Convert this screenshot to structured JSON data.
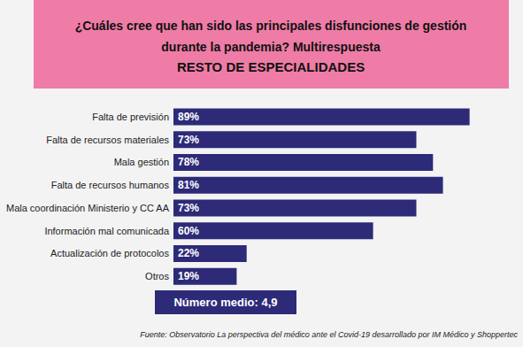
{
  "chart_data": {
    "type": "bar",
    "title": "¿Cuáles cree que han sido las principales disfunciones de gestión\ndurante la pandemia? Multirespuesta",
    "subtitle": "RESTO DE ESPECIALIDADES",
    "categories": [
      "Falta de previsión",
      "Falta de recursos materiales",
      "Mala gestión",
      "Falta de recursos humanos",
      "Mala coordinación Ministerio y CC AA",
      "Información mal comunicada",
      "Actualización de protocolos",
      "Otros"
    ],
    "values": [
      89,
      73,
      78,
      81,
      73,
      60,
      22,
      19
    ],
    "value_labels": [
      "89%",
      "73%",
      "78%",
      "81%",
      "73%",
      "60%",
      "22%",
      "19%"
    ],
    "color": "#2d2a78",
    "orientation": "horizontal",
    "data_labels": true,
    "tick_labels": "y",
    "grid": false,
    "xlim": [
      0,
      100
    ],
    "annotations": [
      "Número medio: 4,9",
      "Fuente: Observatorio La perspectiva del médico ante el Covid-19 desarrollado por IM Médico y Shoppertec"
    ]
  }
}
